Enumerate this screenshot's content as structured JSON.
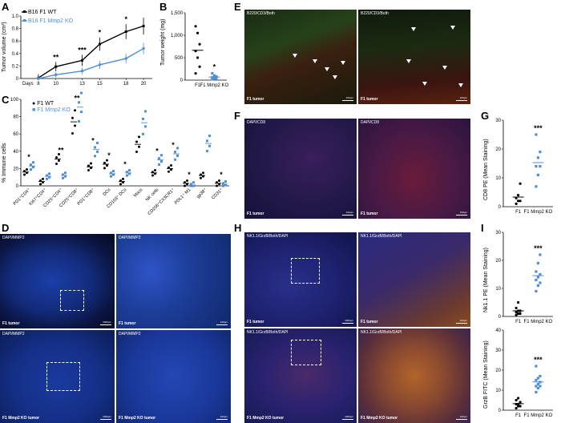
{
  "panels": {
    "A": "A",
    "B": "B",
    "C": "C",
    "D": "D",
    "E": "E",
    "F": "F",
    "G": "G",
    "H": "H",
    "I": "I"
  },
  "panelA": {
    "legend_wt": "B16 F1 WT",
    "legend_ko": "B16 F1 Mmp2 KO",
    "ylabel": "Tumor volume (cm³)",
    "xlabel": "Days",
    "xticks": [
      "8",
      "10",
      "13",
      "15",
      "18",
      "20"
    ],
    "yticks": [
      "0",
      "0.2",
      "0.4",
      "0.6",
      "0.8",
      "1.0"
    ],
    "sig": [
      "**",
      "***",
      "*",
      "*"
    ]
  },
  "panelB": {
    "ylabel": "Tumor weight (mg)",
    "yticks": [
      "0",
      "500",
      "1,000",
      "1,500"
    ],
    "xticks": [
      "F1",
      "F1 Mmp2 KO"
    ],
    "sig": "*"
  },
  "panelC": {
    "legend_wt": "F1 WT",
    "legend_ko": "F1 Mmp2 KO",
    "ylabel": "% Immune cells",
    "yticks": [
      "0",
      "20",
      "40",
      "60",
      "80",
      "100"
    ],
    "categories": [
      "PD1⁺CD4⁺",
      "Ki67⁺CD4⁺",
      "CD25⁺CD4⁺",
      "CD25⁺CD8⁺",
      "PD1⁺CD8⁺",
      "DCs",
      "CD103⁺ DCs",
      "Macs",
      "NK cells",
      "CD206⁺CX3CR1⁺",
      "PDL1⁺ M1",
      "gp38⁺",
      "CD31⁺"
    ],
    "sig": [
      "*",
      "**",
      "**",
      "*",
      "*",
      "*",
      "*",
      "*",
      "*",
      "*"
    ]
  },
  "panelD": {
    "labels": [
      "DAPI/MMP2",
      "DAPI/MMP2",
      "DAPI/MMP2",
      "DAPI/MMP2"
    ],
    "captions": [
      "F1 tumor",
      "F1 tumor",
      "F1 Mmp2 KO tumor",
      "F1 Mmp2 KO tumor"
    ],
    "scalebars": [
      "1000μm",
      "100μm",
      "1000μm",
      "100μm"
    ]
  },
  "panelE": {
    "labels": [
      "B220/CD3/Both",
      "B220/CD3/Both"
    ],
    "captions": [
      "F1 tumor",
      "F1 tumor"
    ],
    "scalebars": [
      "100μm",
      "100μm"
    ]
  },
  "panelF": {
    "labels": [
      "DAPI/CD8",
      "DAPI/CD8"
    ],
    "captions": [
      "F1 tumor",
      "F1 tumor"
    ],
    "scalebars": [
      "100μm",
      "100μm"
    ]
  },
  "panelG": {
    "ylabel": "CD8 PE (Mean Staining)",
    "yticks": [
      "0",
      "10",
      "20",
      "30"
    ],
    "xticks": [
      "F1",
      "F1 Mmp2 KO"
    ],
    "sig": "***"
  },
  "panelH": {
    "labels": [
      "NK1.1/GrzB/Both/DAPI",
      "NK1.1/GrzB/Both/DAPI",
      "NK1.1/GrzB/Both/DAPI",
      "NK1.1/GrzB/Both/DAPI"
    ],
    "captions": [
      "F1 tumor",
      "F1 tumor",
      "F1 Mmp2 KO tumor",
      "F1 Mmp2 KO tumor"
    ],
    "scalebars": [
      "1000μm",
      "100μm",
      "1000μm",
      "100μm"
    ]
  },
  "panelI": {
    "top_ylabel": "Nk1.1 PE (Mean Staining)",
    "top_yticks": [
      "0",
      "10",
      "20",
      "30"
    ],
    "bottom_ylabel": "GrzB FITC (Mean Staining)",
    "bottom_yticks": [
      "0",
      "10",
      "20",
      "30",
      "40"
    ],
    "xticks": [
      "F1",
      "F1 Mmp2 KO"
    ],
    "sig": "***"
  },
  "colors": {
    "wt": "#000000",
    "ko": "#4f8fd8"
  },
  "chart_data": [
    {
      "type": "line",
      "x": [
        8,
        10,
        13,
        15,
        18,
        20
      ],
      "xlabel": "Days",
      "ylabel": "Tumor volume (cm³)",
      "ylim": [
        0,
        1.0
      ],
      "series": [
        {
          "name": "B16 F1 WT",
          "values": [
            0.01,
            0.19,
            0.29,
            0.55,
            0.75,
            0.84
          ]
        },
        {
          "name": "B16 F1 Mmp2 KO",
          "values": [
            0.0,
            0.06,
            0.12,
            0.22,
            0.32,
            0.48
          ]
        }
      ]
    },
    {
      "type": "scatter",
      "categories": [
        "F1",
        "F1 Mmp2 KO"
      ],
      "ylabel": "Tumor weight (mg)",
      "ylim": [
        0,
        1500
      ],
      "series": [
        {
          "name": "F1",
          "values": [
            1200,
            1050,
            800,
            650,
            500,
            300,
            150
          ]
        },
        {
          "name": "F1 Mmp2 KO",
          "values": [
            150,
            100,
            80,
            60,
            40,
            30,
            20
          ]
        }
      ]
    },
    {
      "type": "scatter",
      "categories": [
        "PD1⁺CD4⁺",
        "Ki67⁺CD4⁺",
        "CD25⁺CD4⁺",
        "CD25⁺CD8⁺",
        "PD1⁺CD8⁺",
        "DCs",
        "CD103⁺ DCs",
        "Macs",
        "NK cells",
        "CD206⁺CX3CR1⁺",
        "PDL1⁺ M1",
        "gp38⁺",
        "CD31⁺"
      ],
      "ylabel": "% Immune cells",
      "ylim": [
        0,
        100
      ],
      "series": [
        {
          "name": "F1 WT",
          "values": [
            16,
            5,
            31,
            74,
            22,
            25,
            5,
            48,
            15,
            20,
            3,
            12,
            3
          ]
        },
        {
          "name": "F1 Mmp2 KO",
          "values": [
            23,
            11,
            12,
            91,
            42,
            14,
            15,
            73,
            30,
            37,
            1,
            49,
            2
          ]
        }
      ]
    },
    {
      "type": "scatter",
      "categories": [
        "F1",
        "F1 Mmp2 KO"
      ],
      "ylabel": "CD8 PE (Mean Staining)",
      "ylim": [
        0,
        30
      ],
      "series": [
        {
          "name": "F1",
          "values": [
            1,
            2,
            2,
            3,
            4,
            8
          ]
        },
        {
          "name": "F1 Mmp2 KO",
          "values": [
            7,
            11,
            14,
            14,
            17,
            19,
            25
          ]
        }
      ]
    },
    {
      "type": "scatter",
      "categories": [
        "F1",
        "F1 Mmp2 KO"
      ],
      "ylabel": "Nk1.1 PE (Mean Staining)",
      "ylim": [
        0,
        30
      ],
      "series": [
        {
          "name": "F1",
          "values": [
            0.5,
            1,
            1,
            1.5,
            2,
            2,
            3,
            5
          ]
        },
        {
          "name": "F1 Mmp2 KO",
          "values": [
            9,
            11,
            12,
            13,
            14,
            15,
            16,
            19,
            22
          ]
        }
      ]
    },
    {
      "type": "scatter",
      "categories": [
        "F1",
        "F1 Mmp2 KO"
      ],
      "ylabel": "GrzB FITC (Mean Staining)",
      "ylim": [
        0,
        40
      ],
      "series": [
        {
          "name": "F1",
          "values": [
            1,
            2,
            2,
            3,
            3,
            4,
            5,
            6
          ]
        },
        {
          "name": "F1 Mmp2 KO",
          "values": [
            9,
            11,
            12,
            12,
            13,
            14,
            15,
            16,
            17,
            22
          ]
        }
      ]
    }
  ]
}
